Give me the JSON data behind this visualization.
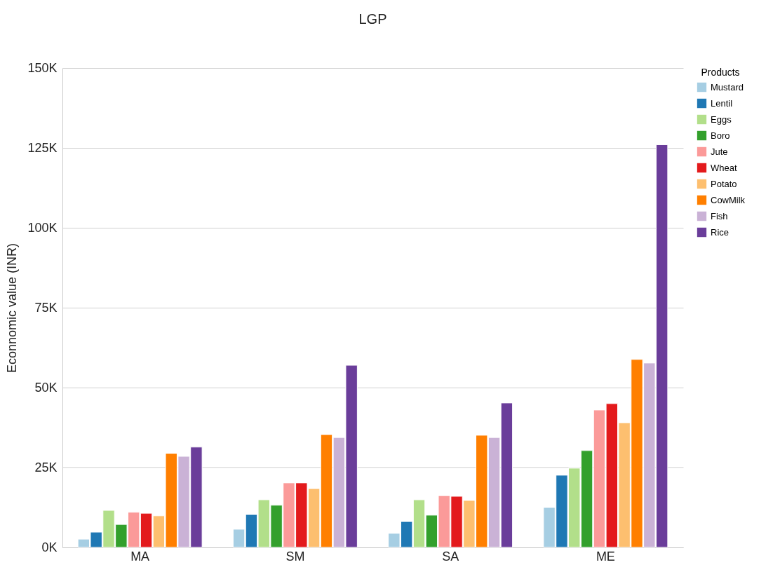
{
  "chart_data": {
    "type": "bar",
    "title": "LGP",
    "ylabel": "Econnomic value (INR)",
    "legend_title": "Products",
    "categories": [
      "MA",
      "SM",
      "SA",
      "ME"
    ],
    "series": [
      {
        "name": "Mustard",
        "color": "#a6cee3",
        "values": [
          2600,
          5700,
          4400,
          12500
        ]
      },
      {
        "name": "Lentil",
        "color": "#1f78b4",
        "values": [
          4800,
          10300,
          8100,
          22600
        ]
      },
      {
        "name": "Eggs",
        "color": "#b2df8a",
        "values": [
          11600,
          14900,
          14900,
          24800
        ]
      },
      {
        "name": "Boro",
        "color": "#33a02c",
        "values": [
          7200,
          13200,
          10100,
          30300
        ]
      },
      {
        "name": "Jute",
        "color": "#fb9a99",
        "values": [
          11000,
          20200,
          16200,
          43000
        ]
      },
      {
        "name": "Wheat",
        "color": "#e31a1c",
        "values": [
          10700,
          20200,
          16000,
          45000
        ]
      },
      {
        "name": "Potato",
        "color": "#fdbf6f",
        "values": [
          9900,
          18400,
          14700,
          39000
        ]
      },
      {
        "name": "CowMilk",
        "color": "#ff7f00",
        "values": [
          29400,
          35300,
          35100,
          58800
        ]
      },
      {
        "name": "Fish",
        "color": "#cab2d6",
        "values": [
          28500,
          34400,
          34400,
          57700
        ]
      },
      {
        "name": "Rice",
        "color": "#6a3d9a",
        "values": [
          31400,
          57000,
          45200,
          126000
        ]
      }
    ],
    "ylim": [
      0,
      150000
    ],
    "yticks": [
      {
        "value": 0,
        "label": "0K"
      },
      {
        "value": 25000,
        "label": "25K"
      },
      {
        "value": 50000,
        "label": "50K"
      },
      {
        "value": 75000,
        "label": "75K"
      },
      {
        "value": 100000,
        "label": "100K"
      },
      {
        "value": 125000,
        "label": "125K"
      },
      {
        "value": 150000,
        "label": "150K"
      }
    ],
    "grid": "y",
    "legend": "right"
  }
}
